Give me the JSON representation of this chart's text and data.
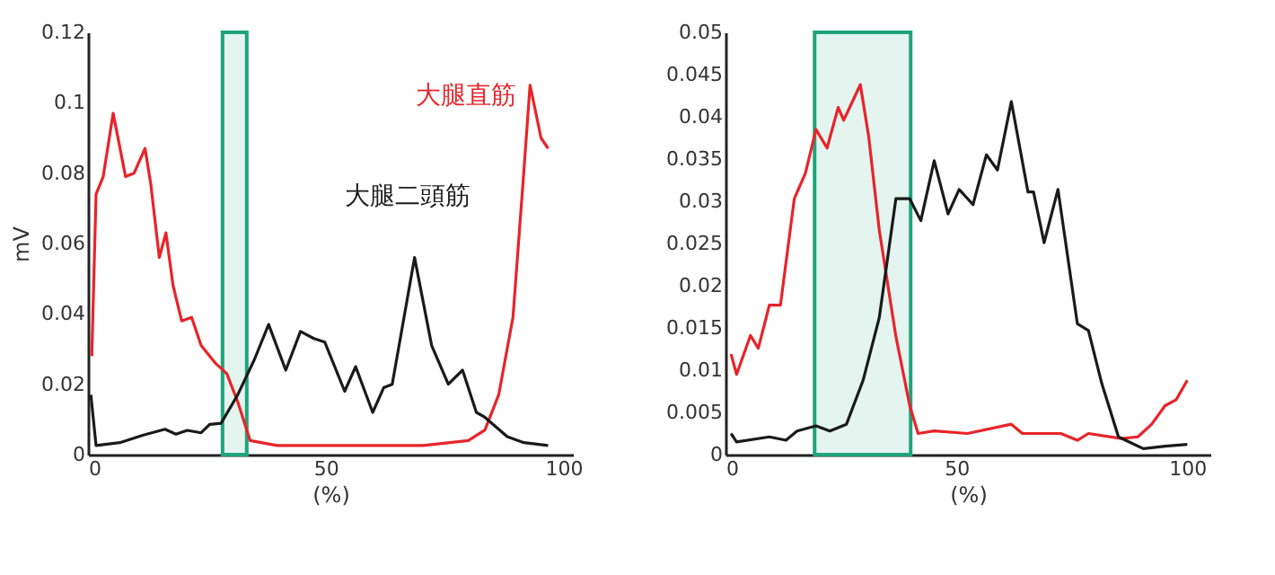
{
  "chart_data": [
    {
      "type": "line",
      "xlabel": "(%)",
      "ylabel": "mV",
      "xlim": [
        0,
        102
      ],
      "xticks": [
        0,
        50,
        100
      ],
      "ylim": [
        0,
        0.12
      ],
      "yticks": [
        0,
        0.02,
        0.04,
        0.06,
        0.08,
        0.1,
        0.12
      ],
      "grid": false,
      "line_style": "solid",
      "marker": "none",
      "bands": [
        {
          "axis": "x",
          "from": 28.3,
          "to": 33.4,
          "color": "#1fa37a"
        }
      ],
      "series": [
        {
          "name": "大腿直筋",
          "color": "#e8242a",
          "x": [
            0.8,
            1.7,
            3.2,
            5.3,
            7.9,
            9.7,
            12,
            13.2,
            15,
            16.4,
            17.9,
            19.7,
            21.8,
            23.8,
            26.8,
            29.2,
            31.5,
            34.1,
            39.8,
            61,
            70.5,
            80,
            83.5,
            86.4,
            89.4,
            91.5,
            93,
            95.3,
            96.8
          ],
          "values": [
            0.028,
            0.074,
            0.079,
            0.097,
            0.079,
            0.08,
            0.087,
            0.077,
            0.056,
            0.063,
            0.048,
            0.038,
            0.039,
            0.031,
            0.026,
            0.023,
            0.015,
            0.004,
            0.0026,
            0.0026,
            0.0026,
            0.004,
            0.007,
            0.017,
            0.039,
            0.077,
            0.105,
            0.09,
            0.087
          ]
        },
        {
          "name": "大腿二頭筋",
          "color": "#1a1a1a",
          "x": [
            0.6,
            1.7,
            6.7,
            11.5,
            16.2,
            18.5,
            20.9,
            23.8,
            25.6,
            28,
            31.5,
            35,
            38,
            41.6,
            44.7,
            47.5,
            49.8,
            54,
            56.3,
            59.9,
            62.2,
            64,
            68.7,
            72.3,
            75.8,
            78.8,
            81.7,
            83.5,
            88.2,
            91.7,
            96.8
          ],
          "values": [
            0.017,
            0.0026,
            0.0034,
            0.0055,
            0.0072,
            0.0058,
            0.0069,
            0.0062,
            0.0086,
            0.0089,
            0.017,
            0.027,
            0.037,
            0.024,
            0.035,
            0.033,
            0.032,
            0.018,
            0.025,
            0.012,
            0.019,
            0.02,
            0.056,
            0.031,
            0.02,
            0.024,
            0.012,
            0.0106,
            0.0051,
            0.0034,
            0.0026
          ]
        }
      ]
    },
    {
      "type": "line",
      "xlabel": "(%)",
      "xlim": [
        0,
        105
      ],
      "xticks": [
        0,
        50,
        100
      ],
      "ylim": [
        0,
        0.05
      ],
      "yticks": [
        0,
        0.005,
        0.01,
        0.015,
        0.02,
        0.025,
        0.03,
        0.035,
        0.04,
        0.045,
        0.05
      ],
      "grid": false,
      "line_style": "solid",
      "marker": "none",
      "bands": [
        {
          "axis": "x",
          "from": 19.3,
          "to": 40.1,
          "color": "#1fa37a"
        }
      ],
      "series": [
        {
          "color": "#e8242a",
          "x": [
            1.2,
            2.4,
            5.4,
            7.1,
            9.5,
            11.9,
            14.9,
            17.3,
            19.6,
            22,
            24.4,
            25.6,
            29.2,
            31,
            33.3,
            36.9,
            39.9,
            41.7,
            45.2,
            52.4,
            61.9,
            64.3,
            72.6,
            76.2,
            78.6,
            85.7,
            89.3,
            92.3,
            95.2,
            97.6,
            100
          ],
          "values": [
            0.0119,
            0.0095,
            0.0141,
            0.0126,
            0.0177,
            0.0177,
            0.0303,
            0.0333,
            0.0385,
            0.0363,
            0.0411,
            0.0396,
            0.0438,
            0.0377,
            0.0266,
            0.014,
            0.0058,
            0.0025,
            0.0028,
            0.0025,
            0.0036,
            0.0025,
            0.0025,
            0.0017,
            0.0025,
            0.0019,
            0.0021,
            0.0036,
            0.0058,
            0.0065,
            0.0088
          ]
        },
        {
          "color": "#1a1a1a",
          "x": [
            1.2,
            2.4,
            9.5,
            13.1,
            15.5,
            19.6,
            22.6,
            26.2,
            29.8,
            33.3,
            36.9,
            39.9,
            42.3,
            45.2,
            48.2,
            50.6,
            53.6,
            56.5,
            58.9,
            61.9,
            65.5,
            66.7,
            69,
            72,
            76.2,
            78.6,
            81.5,
            85.1,
            90.5,
            95.2,
            100
          ],
          "values": [
            0.0025,
            0.0015,
            0.0021,
            0.0017,
            0.0028,
            0.0034,
            0.0028,
            0.0036,
            0.0088,
            0.0162,
            0.0303,
            0.0303,
            0.0277,
            0.0348,
            0.0285,
            0.0314,
            0.0296,
            0.0355,
            0.0337,
            0.0418,
            0.0311,
            0.0311,
            0.0251,
            0.0314,
            0.0155,
            0.0147,
            0.0084,
            0.0021,
            0.0007,
            0.001,
            0.0012
          ]
        }
      ]
    }
  ]
}
